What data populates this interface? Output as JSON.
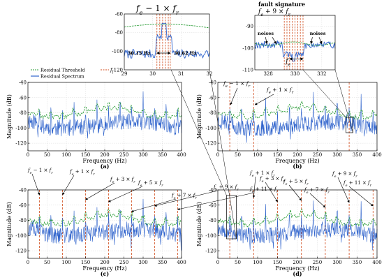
{
  "colors": {
    "spectrum": "#2f63cc",
    "threshold": "#2e9e3a",
    "fault_line": "#d04a1a",
    "grid": "#cfcfcf",
    "arrow": "#000000"
  },
  "labels": {
    "legend_threshold": "Residual Threshold",
    "legend_spectrum": "Residual Spectrum",
    "legend_fl": "f",
    "legend_fl_sub": "l",
    "noises_left": "noises",
    "noises_right": "noises",
    "fault_signature_line1": "fault signature",
    "fault_signature_line2": "f",
    "inset_a_title": "f",
    "inset_a_hz_left": "30.15 Hz",
    "inset_a_hz_right": "30.62 Hz",
    "inset_b_fe": "f",
    "xlabel": "Frequency (Hz)",
    "ylabel": "Magnitude (dB)",
    "panel_a": "(a)",
    "panel_b": "(b)",
    "panel_c": "(c)",
    "panel_d": "(d)"
  },
  "chart_data": [
    {
      "id": "inset_a",
      "type": "line",
      "title": "f_e − 1 × f_r",
      "xlim": [
        29,
        32
      ],
      "ylim": [
        -120,
        -60
      ],
      "xticks": [
        "29",
        "30",
        "31",
        "32"
      ],
      "yticks": [
        "-60",
        "-80",
        "-100",
        "-120"
      ],
      "fault_lines": [
        30.15,
        30.25,
        30.35,
        30.45,
        30.55,
        30.62
      ],
      "annotations": [
        "30.15 Hz",
        "30.62 Hz"
      ]
    },
    {
      "id": "inset_b",
      "type": "line",
      "title": "fault signature f_e + 9 × f_r",
      "xlim": [
        327,
        333
      ],
      "ylim": [
        -110,
        -85
      ],
      "xticks": [
        "328",
        "330",
        "332"
      ],
      "yticks": [
        "-90",
        "-100",
        "-110"
      ],
      "annotations": [
        "noises",
        "noises",
        "f_e"
      ]
    },
    {
      "id": "a",
      "type": "line",
      "label": "(a)",
      "xlabel": "Frequency (Hz)",
      "ylabel": "Magnitude (dB)",
      "xlim": [
        0,
        400
      ],
      "ylim": [
        -130,
        -40
      ],
      "xticks": [
        "0",
        "50",
        "100",
        "150",
        "200",
        "250",
        "300",
        "350",
        "400"
      ],
      "yticks": [
        "-40",
        "-60",
        "-80",
        "-100",
        "-120"
      ],
      "peaks": [
        30,
        60,
        90,
        120,
        150,
        180,
        210,
        240,
        270,
        300,
        330,
        360,
        390
      ],
      "series": [
        {
          "name": "Residual Threshold"
        },
        {
          "name": "Residual Spectrum"
        },
        {
          "name": "f_l"
        }
      ],
      "legend": "top-left"
    },
    {
      "id": "b",
      "type": "line",
      "label": "(b)",
      "xlabel": "Frequency (Hz)",
      "ylabel": "Magnitude (dB)",
      "xlim": [
        0,
        400
      ],
      "ylim": [
        -130,
        -40
      ],
      "xticks": [
        "0",
        "50",
        "100",
        "150",
        "200",
        "250",
        "300",
        "350",
        "400"
      ],
      "yticks": [
        "-40",
        "-60",
        "-80",
        "-100",
        "-120"
      ],
      "fault_lines": [
        30,
        90,
        330
      ],
      "annotations": [
        "f_e − 1 × f_r",
        "f_e + 1 × f_r"
      ]
    },
    {
      "id": "c",
      "type": "line",
      "label": "(c)",
      "xlabel": "Frequency (Hz)",
      "ylabel": "Magnitude (dB)",
      "xlim": [
        0,
        400
      ],
      "ylim": [
        -130,
        -40
      ],
      "xticks": [
        "0",
        "50",
        "100",
        "150",
        "200",
        "250",
        "300",
        "350",
        "400"
      ],
      "yticks": [
        "-40",
        "-60",
        "-80",
        "-100",
        "-120"
      ],
      "fault_lines": [
        30,
        90,
        150,
        210,
        270,
        330,
        390
      ],
      "annotations": [
        "f_e − 1 × f_r",
        "f_e + 1 × f_r",
        "f_e + 3 × f_r",
        "f_e + 5 × f_r",
        "f_e + 7 × f_r",
        "f_e + 9 × f_r",
        "f_e + 11 × f_r"
      ]
    },
    {
      "id": "d",
      "type": "line",
      "label": "(d)",
      "xlabel": "Frequency (Hz)",
      "ylabel": "Magnitude (dB)",
      "xlim": [
        0,
        400
      ],
      "ylim": [
        -130,
        -40
      ],
      "xticks": [
        "0",
        "50",
        "100",
        "150",
        "200",
        "250",
        "300",
        "350",
        "400"
      ],
      "yticks": [
        "-40",
        "-60",
        "-80",
        "-100",
        "-120"
      ],
      "fault_lines": [
        30,
        90,
        150,
        210,
        270,
        330,
        390
      ],
      "annotations": [
        "f_e + 1 × f_r",
        "f_e + 3 × f_r",
        "f_e + 5 × f_r",
        "f_e + 7 × f_r",
        "f_e + 9 × f_r",
        "f_e + 11 × f_r"
      ]
    }
  ]
}
